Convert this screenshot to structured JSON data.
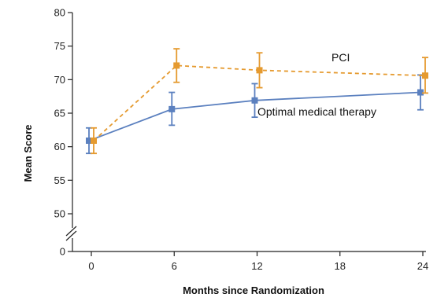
{
  "chart_data": {
    "type": "line",
    "xlabel": "Months since Randomization",
    "ylabel": "Mean Score",
    "x_ticks": [
      0,
      6,
      12,
      18,
      24
    ],
    "y_ticks": [
      0,
      50,
      55,
      60,
      65,
      70,
      75,
      80
    ],
    "y_axis_break": [
      0,
      50
    ],
    "xlim": [
      0,
      24
    ],
    "ylim": [
      0,
      80
    ],
    "series": [
      {
        "name": "PCI",
        "color": "#e59a2f",
        "line_style": "dashed",
        "marker": "square",
        "x": [
          0,
          6,
          12,
          24
        ],
        "y": [
          60.9,
          72.1,
          71.4,
          70.6
        ],
        "error_low": [
          59.0,
          69.6,
          68.8,
          68.0
        ],
        "error_high": [
          62.8,
          74.6,
          74.0,
          73.3
        ]
      },
      {
        "name": "Optimal medical therapy",
        "color": "#5b80bf",
        "line_style": "solid",
        "marker": "square",
        "x": [
          0,
          6,
          12,
          24
        ],
        "y": [
          60.9,
          65.6,
          66.9,
          68.1
        ],
        "error_low": [
          59.0,
          63.2,
          64.4,
          65.5
        ],
        "error_high": [
          62.8,
          68.1,
          69.4,
          70.7
        ]
      }
    ]
  }
}
